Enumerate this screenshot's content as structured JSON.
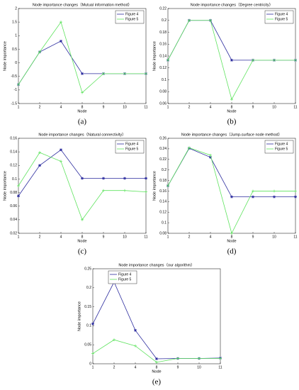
{
  "chart_data": [
    {
      "type": "line",
      "title": "Node importance changes（Mutual information method）",
      "panel_label": "(a)",
      "x_label": "Node",
      "y_label": "Node importance",
      "categories": [
        "1",
        "2",
        "4",
        "8",
        "9",
        "10",
        "11"
      ],
      "ylim": [
        -1.5,
        2
      ],
      "yticks": [
        -1.5,
        -1,
        -0.5,
        0,
        0.5,
        1,
        1.5,
        2
      ],
      "legend": "upper right",
      "series": [
        {
          "name": "Figure 4",
          "color": "#2b2b9e",
          "values": [
            -0.8,
            0.4,
            0.8,
            -0.4,
            -0.4,
            -0.4,
            -0.4
          ]
        },
        {
          "name": "Figure 5",
          "color": "#5fe35f",
          "values": [
            -0.8,
            0.4,
            1.5,
            -1.1,
            -0.4,
            -0.4,
            -0.4
          ]
        }
      ]
    },
    {
      "type": "line",
      "title": "Node importance changes（Degree centricity）",
      "panel_label": "(b)",
      "x_label": "Node",
      "y_label": "Node importance",
      "categories": [
        "1",
        "2",
        "4",
        "8",
        "9",
        "10",
        "11"
      ],
      "ylim": [
        0.06,
        0.22
      ],
      "yticks": [
        0.06,
        0.08,
        0.1,
        0.12,
        0.14,
        0.16,
        0.18,
        0.2,
        0.22
      ],
      "legend": "upper right",
      "series": [
        {
          "name": "Figure 4",
          "color": "#2b2b9e",
          "values": [
            0.133,
            0.2,
            0.2,
            0.133,
            0.133,
            0.133,
            0.133
          ]
        },
        {
          "name": "Figure 5",
          "color": "#5fe35f",
          "values": [
            0.133,
            0.2,
            0.2,
            0.067,
            0.133,
            0.133,
            0.133
          ]
        }
      ]
    },
    {
      "type": "line",
      "title": "Node importance changes（Natural connectivity）",
      "panel_label": "(c)",
      "x_label": "Node",
      "y_label": "Node importance",
      "categories": [
        "1",
        "2",
        "4",
        "8",
        "9",
        "10",
        "11"
      ],
      "ylim": [
        0.02,
        0.16
      ],
      "yticks": [
        0.02,
        0.04,
        0.06,
        0.08,
        0.1,
        0.12,
        0.14,
        0.16
      ],
      "legend": "upper right",
      "series": [
        {
          "name": "Figure 4",
          "color": "#2b2b9e",
          "values": [
            0.075,
            0.12,
            0.143,
            0.101,
            0.101,
            0.101,
            0.101
          ]
        },
        {
          "name": "Figure 5",
          "color": "#5fe35f",
          "values": [
            0.09,
            0.139,
            0.126,
            0.04,
            0.083,
            0.083,
            0.081
          ]
        }
      ]
    },
    {
      "type": "line",
      "title": "Node importance changes（Jump-surface node method）",
      "panel_label": "(d)",
      "x_label": "Node",
      "y_label": "Node importance",
      "categories": [
        "1",
        "2",
        "4",
        "8",
        "9",
        "10",
        "11"
      ],
      "ylim": [
        0.08,
        0.26
      ],
      "yticks": [
        0.08,
        0.1,
        0.12,
        0.14,
        0.16,
        0.18,
        0.2,
        0.22,
        0.24,
        0.26
      ],
      "legend": "upper right",
      "series": [
        {
          "name": "Figure 4",
          "color": "#2b2b9e",
          "values": [
            0.17,
            0.241,
            0.224,
            0.149,
            0.149,
            0.149,
            0.149
          ]
        },
        {
          "name": "Figure 5",
          "color": "#5fe35f",
          "values": [
            0.17,
            0.242,
            0.228,
            0.08,
            0.16,
            0.16,
            0.16
          ]
        }
      ]
    },
    {
      "type": "line",
      "title": "Node importance changes（our algorithm）",
      "panel_label": "(e)",
      "x_label": "Node",
      "y_label": "Node importance",
      "categories": [
        "1",
        "2",
        "4",
        "8",
        "9",
        "10",
        "11"
      ],
      "ylim": [
        0,
        0.25
      ],
      "yticks": [
        0,
        0.05,
        0.1,
        0.15,
        0.2,
        0.25
      ],
      "legend": "upper left",
      "series": [
        {
          "name": "Figure 4",
          "color": "#2b2b9e",
          "values": [
            0.105,
            0.215,
            0.088,
            0.013,
            0.014,
            0.014,
            0.015
          ]
        },
        {
          "name": "Figure 5",
          "color": "#5fe35f",
          "values": [
            0.027,
            0.063,
            0.047,
            0.004,
            0.014,
            0.014,
            0.014
          ]
        }
      ]
    }
  ]
}
